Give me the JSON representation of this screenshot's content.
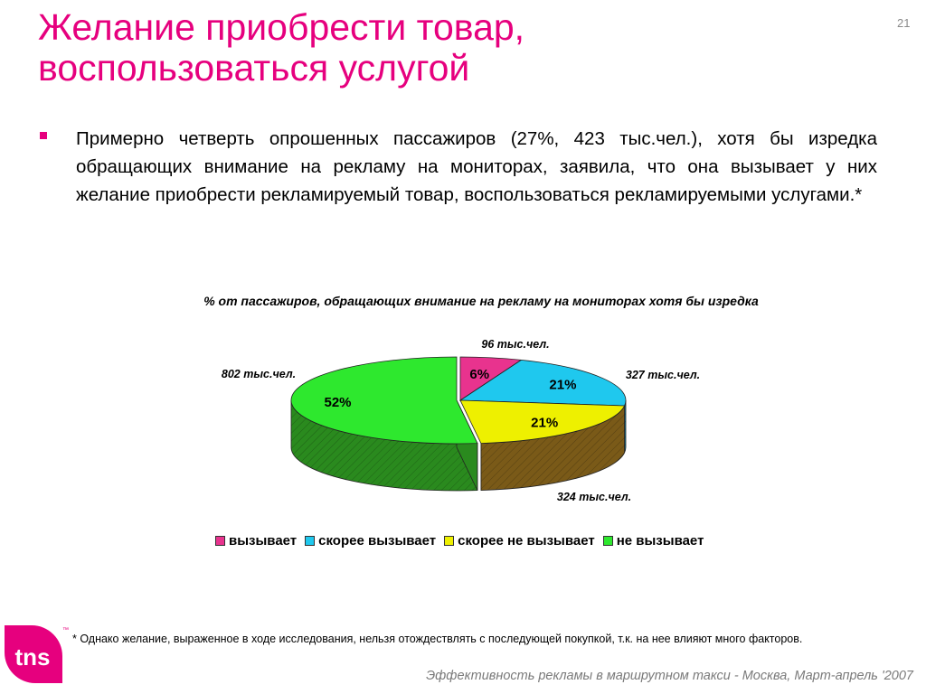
{
  "slide": {
    "title_lines": [
      "Желание приобрести товар,",
      "воспользоваться услугой"
    ],
    "number": "21"
  },
  "bullet": {
    "text": "Примерно четверть опрошенных пассажиров (27%, 423 тыс.чел.), хотя бы изредка обращающих внимание на рекламу на мониторах, заявила, что она вызывает у них желание приобрести рекламируемый товар, воспользоваться рекламируемыми услугами.*"
  },
  "chart_data": {
    "type": "pie",
    "title": "% от пассажиров, обращающих внимание на  рекламу на мониторах  хотя бы изредка",
    "categories": [
      "вызывает",
      "скорее вызывает",
      "скорее не вызывает",
      "не вызывает"
    ],
    "values": [
      6,
      21,
      21,
      52
    ],
    "value_labels": [
      "6%",
      "21%",
      "21%",
      "52%"
    ],
    "annotations": [
      "96 тыс.чел.",
      "327 тыс.чел.",
      "324 тыс.чел.",
      "802 тыс.чел."
    ],
    "colors": [
      "#e8338e",
      "#1fc8ee",
      "#eef000",
      "#2ee82e"
    ],
    "side_colors": [
      "#8a1a55",
      "#1a7d96",
      "#7a5a18",
      "#2a8a1e"
    ],
    "legend_position": "bottom",
    "style": "3d-exploded"
  },
  "footnote": "* Однако желание, выраженное в ходе исследования, нельзя отождествлять с последующей покупкой, т.к. на нее влияют много факторов.",
  "footer": "Эффективность рекламы в маршрутном такси - Москва, Март-апрель '2007",
  "logo": {
    "text": "tns",
    "tm": "™",
    "color": "#e6007e"
  }
}
